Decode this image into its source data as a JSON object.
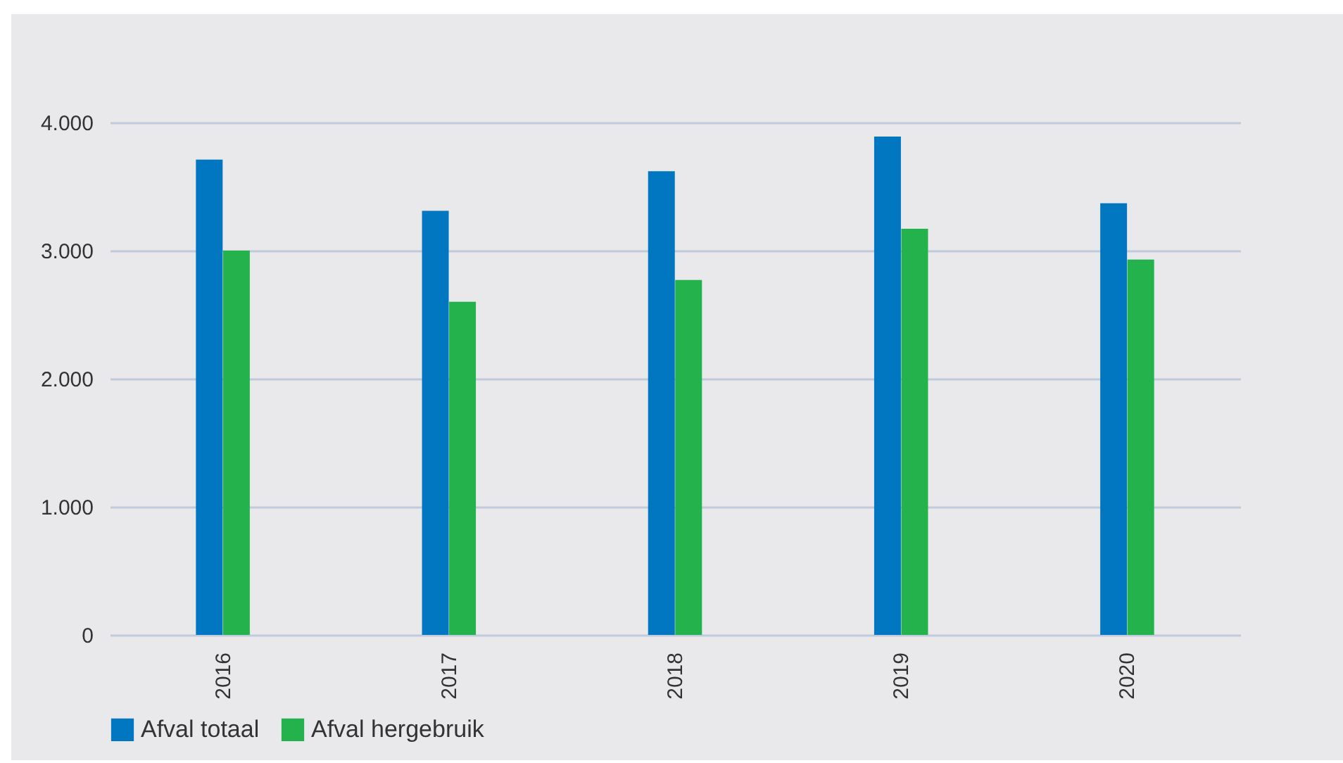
{
  "chart_data": {
    "type": "bar",
    "categories": [
      "2016",
      "2017",
      "2018",
      "2019",
      "2020"
    ],
    "series": [
      {
        "name": "Afval totaal",
        "color": "#0077c0",
        "values": [
          3710,
          3310,
          3620,
          3890,
          3370
        ]
      },
      {
        "name": "Afval hergebruik",
        "color": "#23b24b",
        "values": [
          3000,
          2600,
          2770,
          3170,
          2930
        ]
      }
    ],
    "ylim": [
      0,
      4000
    ],
    "yticks": [
      {
        "value": 0,
        "label": "0"
      },
      {
        "value": 1000,
        "label": "1.000"
      },
      {
        "value": 2000,
        "label": "2.000"
      },
      {
        "value": 3000,
        "label": "3.000"
      },
      {
        "value": 4000,
        "label": "4.000"
      }
    ],
    "grid": "y",
    "legend": "bottom left"
  }
}
